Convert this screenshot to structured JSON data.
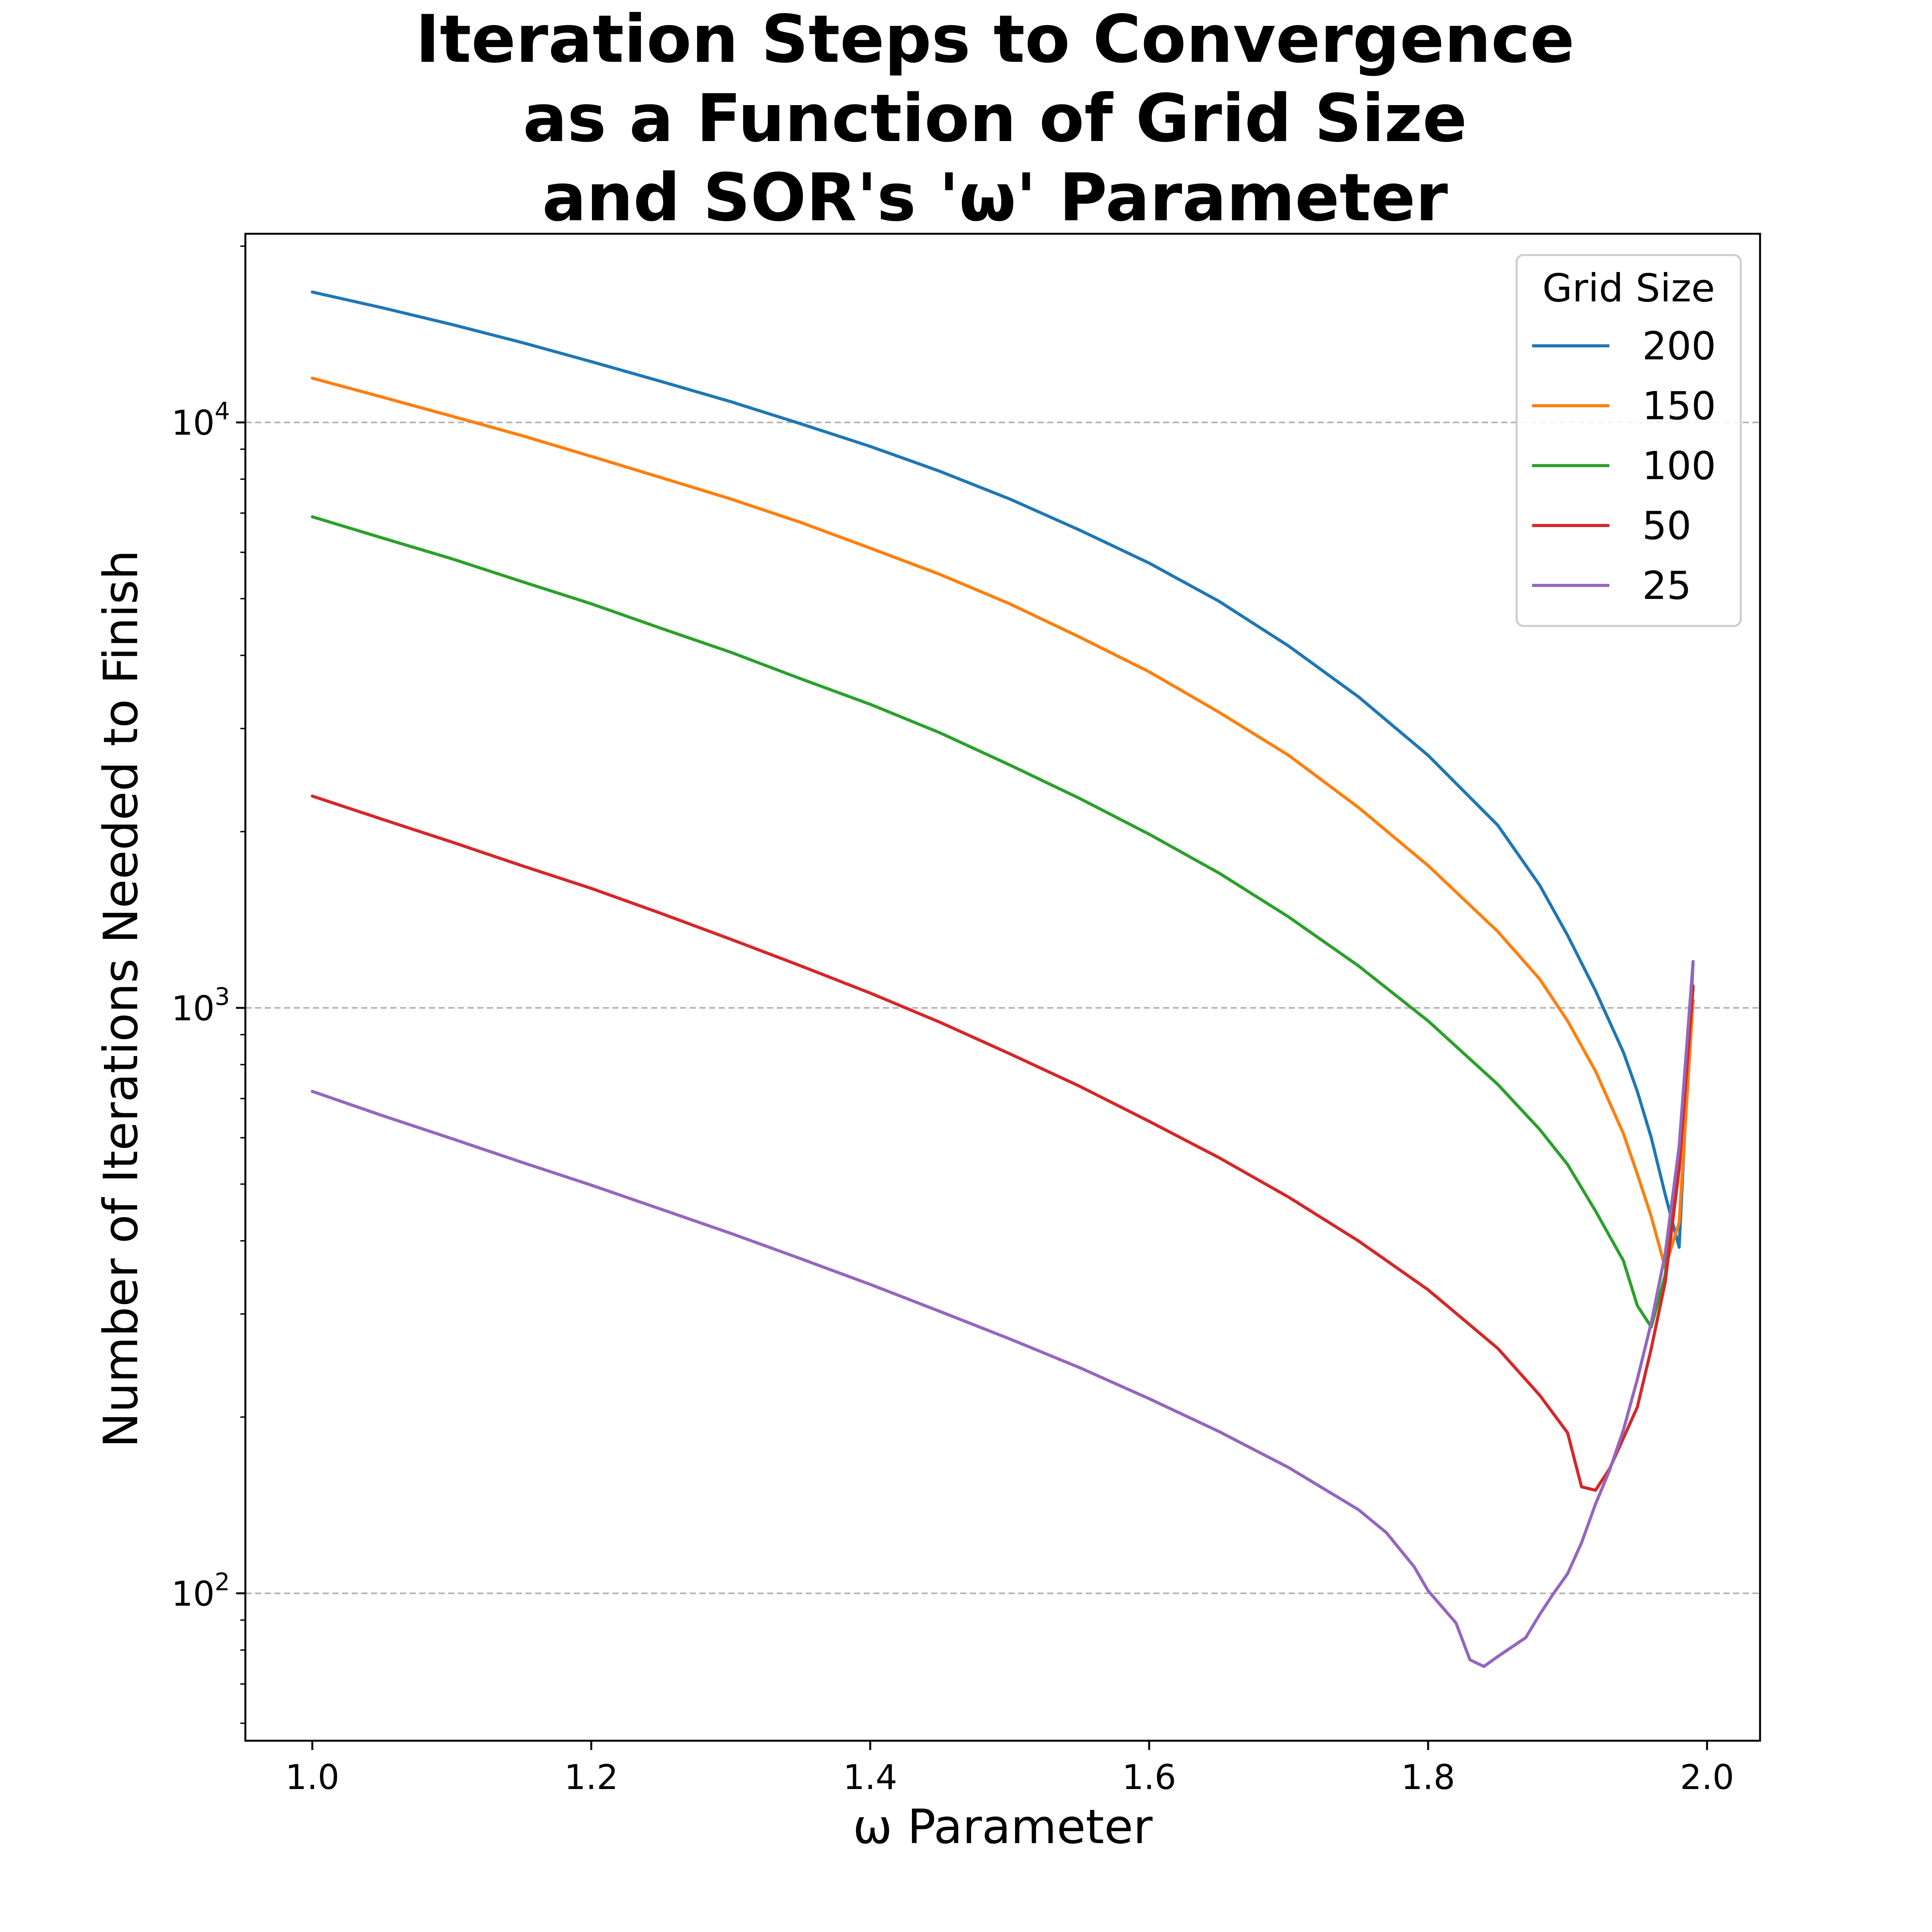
{
  "chart_data": {
    "type": "line",
    "title": [
      "Iteration Steps to Convergence",
      "as a Function of Grid Size",
      "and SOR's 'ω' Parameter"
    ],
    "xlabel": "ω Parameter",
    "ylabel": "Number of Iterations Needed to Finish",
    "xscale": "linear",
    "yscale": "log",
    "xlim": [
      0.952,
      2.038
    ],
    "ylim": [
      56,
      21000
    ],
    "x_ticks": [
      {
        "value": 1.0,
        "label": "1.0"
      },
      {
        "value": 1.2,
        "label": "1.2"
      },
      {
        "value": 1.4,
        "label": "1.4"
      },
      {
        "value": 1.6,
        "label": "1.6"
      },
      {
        "value": 1.8,
        "label": "1.8"
      },
      {
        "value": 2.0,
        "label": "2.0"
      }
    ],
    "y_ticks": [
      {
        "value": 100,
        "base": "10",
        "exp": "2"
      },
      {
        "value": 1000,
        "base": "10",
        "exp": "3"
      },
      {
        "value": 10000,
        "base": "10",
        "exp": "4"
      }
    ],
    "grid": {
      "y_major": true,
      "style": "dashed",
      "color": "#b0b0b0"
    },
    "legend": {
      "title": "Grid Size",
      "position": "top-right"
    },
    "series": [
      {
        "name": "200",
        "color": "#1f77b4",
        "points": [
          [
            1.0,
            16700
          ],
          [
            1.05,
            15700
          ],
          [
            1.1,
            14700
          ],
          [
            1.15,
            13700
          ],
          [
            1.2,
            12700
          ],
          [
            1.25,
            11750
          ],
          [
            1.3,
            10850
          ],
          [
            1.35,
            9950
          ],
          [
            1.4,
            9100
          ],
          [
            1.45,
            8250
          ],
          [
            1.5,
            7400
          ],
          [
            1.55,
            6550
          ],
          [
            1.6,
            5750
          ],
          [
            1.65,
            4950
          ],
          [
            1.7,
            4150
          ],
          [
            1.75,
            3400
          ],
          [
            1.8,
            2700
          ],
          [
            1.85,
            2050
          ],
          [
            1.88,
            1620
          ],
          [
            1.9,
            1330
          ],
          [
            1.92,
            1070
          ],
          [
            1.94,
            840
          ],
          [
            1.95,
            720
          ],
          [
            1.96,
            600
          ],
          [
            1.97,
            480
          ],
          [
            1.98,
            390
          ],
          [
            1.99,
            1200
          ]
        ]
      },
      {
        "name": "150",
        "color": "#ff7f0e",
        "points": [
          [
            1.0,
            11900
          ],
          [
            1.05,
            11050
          ],
          [
            1.1,
            10250
          ],
          [
            1.15,
            9500
          ],
          [
            1.2,
            8750
          ],
          [
            1.25,
            8050
          ],
          [
            1.3,
            7400
          ],
          [
            1.35,
            6750
          ],
          [
            1.4,
            6100
          ],
          [
            1.45,
            5500
          ],
          [
            1.5,
            4900
          ],
          [
            1.55,
            4300
          ],
          [
            1.6,
            3750
          ],
          [
            1.65,
            3200
          ],
          [
            1.7,
            2700
          ],
          [
            1.75,
            2200
          ],
          [
            1.8,
            1750
          ],
          [
            1.85,
            1350
          ],
          [
            1.88,
            1120
          ],
          [
            1.9,
            950
          ],
          [
            1.92,
            780
          ],
          [
            1.94,
            610
          ],
          [
            1.95,
            520
          ],
          [
            1.96,
            440
          ],
          [
            1.97,
            360
          ],
          [
            1.98,
            430
          ],
          [
            1.99,
            1030
          ]
        ]
      },
      {
        "name": "100",
        "color": "#2ca02c",
        "points": [
          [
            1.0,
            6900
          ],
          [
            1.05,
            6350
          ],
          [
            1.1,
            5850
          ],
          [
            1.15,
            5350
          ],
          [
            1.2,
            4900
          ],
          [
            1.25,
            4450
          ],
          [
            1.3,
            4050
          ],
          [
            1.35,
            3650
          ],
          [
            1.4,
            3300
          ],
          [
            1.45,
            2950
          ],
          [
            1.5,
            2600
          ],
          [
            1.55,
            2280
          ],
          [
            1.6,
            1980
          ],
          [
            1.65,
            1700
          ],
          [
            1.7,
            1430
          ],
          [
            1.75,
            1180
          ],
          [
            1.8,
            950
          ],
          [
            1.85,
            740
          ],
          [
            1.88,
            620
          ],
          [
            1.9,
            540
          ],
          [
            1.92,
            450
          ],
          [
            1.94,
            370
          ],
          [
            1.95,
            310
          ],
          [
            1.96,
            285
          ],
          [
            1.97,
            350
          ],
          [
            1.98,
            560
          ],
          [
            1.99,
            1080
          ]
        ]
      },
      {
        "name": "50",
        "color": "#d62728",
        "points": [
          [
            1.0,
            2300
          ],
          [
            1.05,
            2100
          ],
          [
            1.1,
            1920
          ],
          [
            1.15,
            1750
          ],
          [
            1.2,
            1600
          ],
          [
            1.25,
            1450
          ],
          [
            1.3,
            1310
          ],
          [
            1.35,
            1180
          ],
          [
            1.4,
            1060
          ],
          [
            1.45,
            945
          ],
          [
            1.5,
            835
          ],
          [
            1.55,
            735
          ],
          [
            1.6,
            640
          ],
          [
            1.65,
            555
          ],
          [
            1.7,
            475
          ],
          [
            1.75,
            400
          ],
          [
            1.8,
            330
          ],
          [
            1.85,
            262
          ],
          [
            1.88,
            218
          ],
          [
            1.9,
            188
          ],
          [
            1.91,
            152
          ],
          [
            1.92,
            150
          ],
          [
            1.93,
            163
          ],
          [
            1.95,
            208
          ],
          [
            1.96,
            262
          ],
          [
            1.97,
            340
          ],
          [
            1.98,
            530
          ],
          [
            1.99,
            1090
          ]
        ]
      },
      {
        "name": "25",
        "color": "#9467bd",
        "points": [
          [
            1.0,
            720
          ],
          [
            1.05,
            655
          ],
          [
            1.1,
            598
          ],
          [
            1.15,
            545
          ],
          [
            1.2,
            498
          ],
          [
            1.25,
            453
          ],
          [
            1.3,
            412
          ],
          [
            1.35,
            373
          ],
          [
            1.4,
            337
          ],
          [
            1.45,
            303
          ],
          [
            1.5,
            272
          ],
          [
            1.55,
            243
          ],
          [
            1.6,
            215
          ],
          [
            1.65,
            189
          ],
          [
            1.7,
            164
          ],
          [
            1.75,
            139
          ],
          [
            1.77,
            127
          ],
          [
            1.79,
            111
          ],
          [
            1.8,
            101
          ],
          [
            1.82,
            89
          ],
          [
            1.83,
            77
          ],
          [
            1.84,
            75
          ],
          [
            1.85,
            78
          ],
          [
            1.87,
            84
          ],
          [
            1.88,
            92
          ],
          [
            1.89,
            100
          ],
          [
            1.9,
            108
          ],
          [
            1.91,
            122
          ],
          [
            1.92,
            142
          ],
          [
            1.93,
            162
          ],
          [
            1.94,
            190
          ],
          [
            1.95,
            232
          ],
          [
            1.96,
            290
          ],
          [
            1.97,
            380
          ],
          [
            1.98,
            580
          ],
          [
            1.99,
            1200
          ]
        ]
      }
    ]
  }
}
